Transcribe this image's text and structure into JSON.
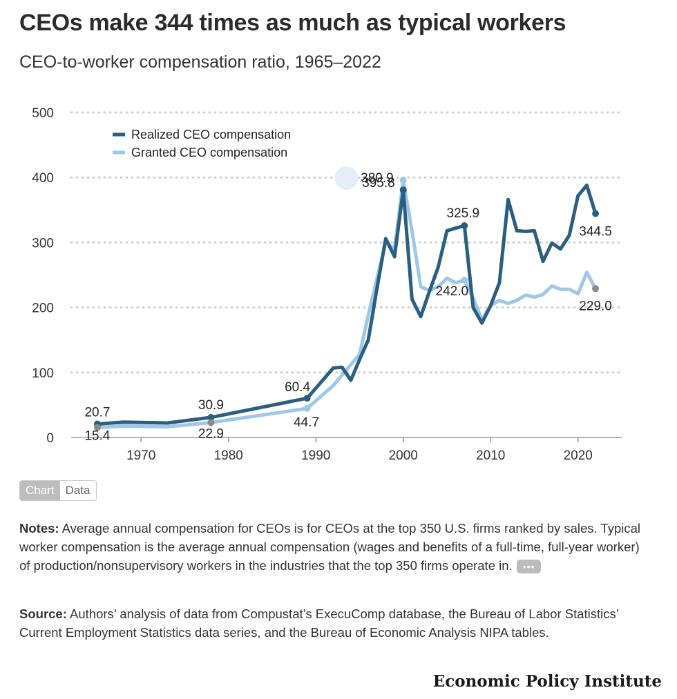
{
  "header": {
    "title": "CEOs make 344 times as much as typical workers",
    "subtitle": "CEO-to-worker compensation ratio, 1965–2022"
  },
  "view_toggle": {
    "chart_label": "Chart",
    "data_label": "Data"
  },
  "notes": {
    "label": "Notes:",
    "text": " Average annual compensation for CEOs is for CEOs at the top 350 U.S. firms ranked by sales. Typical worker compensation is the average annual compensation (wages and benefits of a full-time, full-year worker) of production/nonsupervisory workers in the industries that the top 350 firms operate in.",
    "more_label": "•••"
  },
  "source": {
    "label": "Source:",
    "text": " Authors’ analysis of data from Compustat’s ExecuComp database, the Bureau of Labor Statistics’ Current Employment Statistics data series, and the Bureau of Economic Analysis NIPA tables."
  },
  "brand": "Economic Policy Institute",
  "colors": {
    "realized": "#2a5f80",
    "granted": "#9ec8e8",
    "gray_marker": "#8a8a8a",
    "grid": "#d0d0d0"
  },
  "chart_data": {
    "type": "line",
    "xlim": [
      1962,
      2025
    ],
    "ylim": [
      0,
      500
    ],
    "x_ticks": [
      1970,
      1980,
      1990,
      2000,
      2010,
      2020
    ],
    "y_ticks": [
      0,
      100,
      200,
      300,
      400,
      500
    ],
    "grid": "horizontal dotted",
    "legend_position": "top-left",
    "series": [
      {
        "name": "Realized CEO compensation",
        "color": "#2a5f80",
        "x": [
          1965,
          1968,
          1973,
          1978,
          1989,
          1992,
          1993,
          1994,
          1995,
          1996,
          1997,
          1998,
          1999,
          2000,
          2001,
          2002,
          2003,
          2004,
          2005,
          2006,
          2007,
          2008,
          2009,
          2010,
          2011,
          2012,
          2013,
          2014,
          2015,
          2016,
          2017,
          2018,
          2019,
          2020,
          2021,
          2022
        ],
        "y": [
          20.7,
          23.7,
          22.3,
          30.9,
          60.4,
          107,
          108,
          88,
          120,
          150,
          230,
          306,
          278,
          380.9,
          213,
          186,
          225,
          262,
          318,
          322,
          325.9,
          200,
          176,
          203,
          238,
          366,
          318,
          317,
          318,
          271,
          299,
          290,
          311,
          372,
          388,
          344.5
        ]
      },
      {
        "name": "Granted CEO compensation",
        "color": "#9ec8e8",
        "x": [
          1965,
          1968,
          1973,
          1978,
          1989,
          1992,
          1995,
          1996,
          1997,
          1998,
          1999,
          2000,
          2001,
          2002,
          2003,
          2004,
          2005,
          2006,
          2007,
          2008,
          2009,
          2010,
          2011,
          2012,
          2013,
          2014,
          2015,
          2016,
          2017,
          2018,
          2019,
          2020,
          2021,
          2022
        ],
        "y": [
          15.4,
          17.5,
          16.5,
          22.9,
          44.7,
          80,
          128,
          188,
          245,
          300,
          290,
          395.8,
          318,
          232,
          226,
          232,
          245,
          238,
          242.0,
          215,
          181,
          203,
          211,
          206,
          211,
          219,
          216,
          220,
          233,
          228,
          228,
          221,
          254,
          229.0
        ]
      }
    ],
    "annotations": [
      {
        "x": 1965,
        "y": 20.7,
        "label": "20.7",
        "series": 0
      },
      {
        "x": 1965,
        "y": 15.4,
        "label": "15.4",
        "series": 1
      },
      {
        "x": 1978,
        "y": 30.9,
        "label": "30.9",
        "series": 0
      },
      {
        "x": 1978,
        "y": 22.9,
        "label": "22.9",
        "series": 1
      },
      {
        "x": 1989,
        "y": 60.4,
        "label": "60.4",
        "series": 0
      },
      {
        "x": 1989,
        "y": 44.7,
        "label": "44.7",
        "series": 1
      },
      {
        "x": 2000,
        "y": 395.8,
        "label": "395.8",
        "series": 1
      },
      {
        "x": 2000,
        "y": 380.9,
        "label": "380.9",
        "series": 0
      },
      {
        "x": 2007,
        "y": 325.9,
        "label": "325.9",
        "series": 0
      },
      {
        "x": 2007,
        "y": 242.0,
        "label": "242.0",
        "series": 1
      },
      {
        "x": 2022,
        "y": 344.5,
        "label": "344.5",
        "series": 0
      },
      {
        "x": 2022,
        "y": 229.0,
        "label": "229.0",
        "series": 1
      }
    ]
  }
}
